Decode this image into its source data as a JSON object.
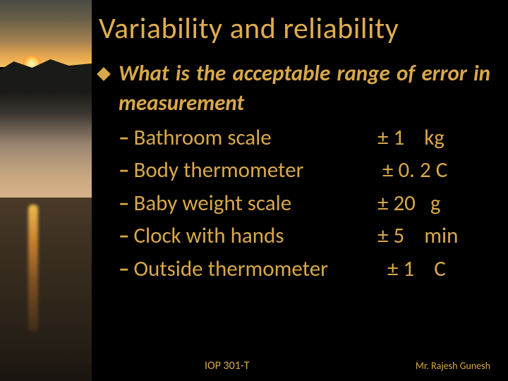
{
  "colors": {
    "text": "#d9a84a",
    "title": "#e0ad4e",
    "background": "#000000"
  },
  "typography": {
    "title_fontsize": 42,
    "body_fontsize": 31,
    "footer_fontsize": 16,
    "font_family": "Calibri"
  },
  "title": "Variability and reliability",
  "question": "What is the acceptable range of error in measurement",
  "items": [
    {
      "label": "Bathroom scale",
      "value": "± 1    kg"
    },
    {
      "label": "Body thermometer",
      "value": " ± 0. 2 C"
    },
    {
      "label": "Baby weight scale",
      "value": "± 20   g"
    },
    {
      "label": "Clock with hands",
      "value": "± 5    min"
    },
    {
      "label": "Outside thermometer",
      "value": "  ± 1    C"
    }
  ],
  "footer": {
    "left": "IOP 301-T",
    "right": "Mr. Rajesh Gunesh"
  }
}
